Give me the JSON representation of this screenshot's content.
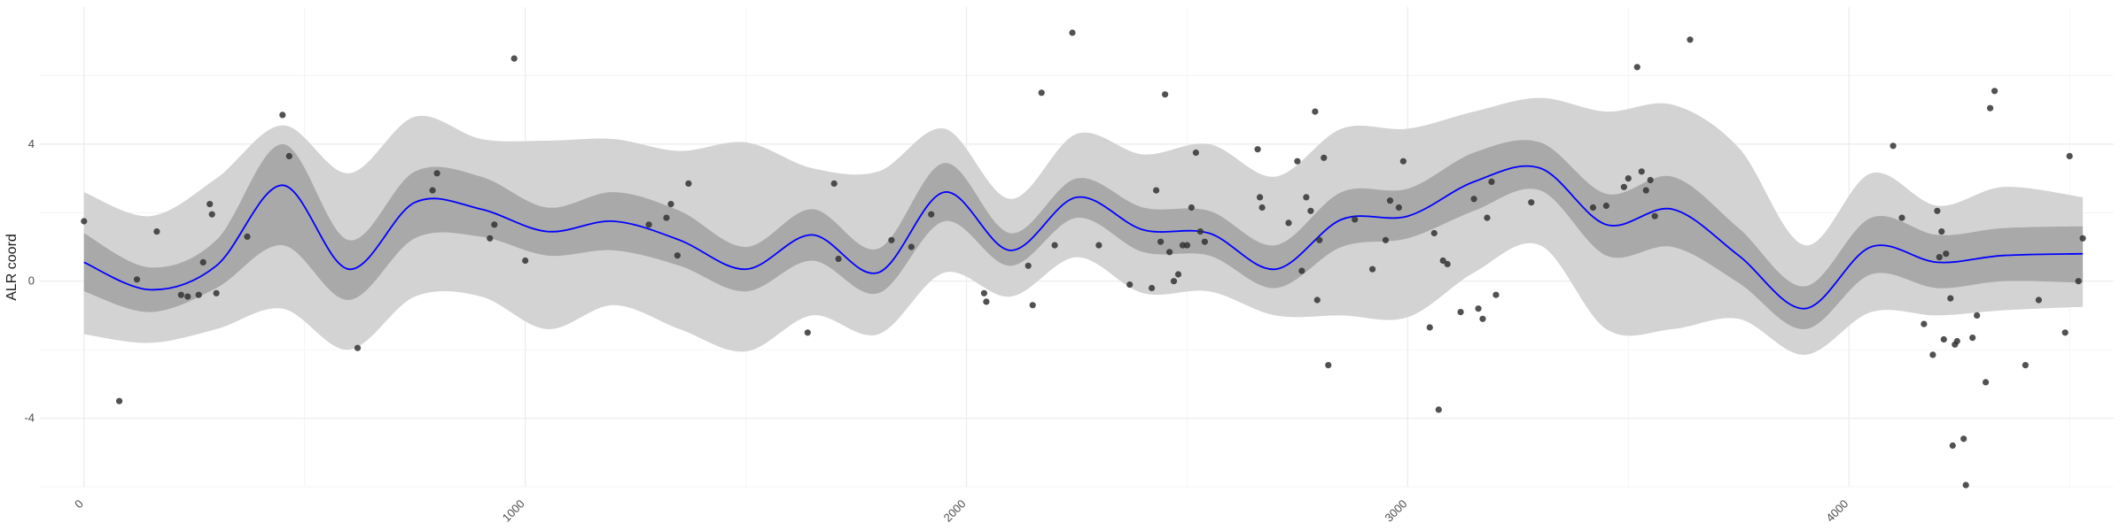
{
  "chart_data": {
    "type": "line",
    "title": "",
    "xlabel": "",
    "ylabel": "ALR coord",
    "xlim": [
      -100,
      4600
    ],
    "ylim": [
      -6,
      8
    ],
    "x_ticks": [
      0,
      1000,
      2000,
      3000,
      4000
    ],
    "x_tick_labels": [
      "0",
      "1000",
      "2000",
      "3000",
      "4000"
    ],
    "y_ticks": [
      -4,
      0,
      4
    ],
    "y_tick_labels": [
      "-4",
      "0",
      "4"
    ],
    "grid": true,
    "legend": "none",
    "colors": {
      "mean_line": "#0000ff",
      "inner_band": "#a9a9a9",
      "outer_band": "#d3d3d3",
      "points": "#333333",
      "grid_major": "#ebebeb",
      "grid_minor": "#f4f4f4"
    },
    "x_grid": [
      0,
      150,
      300,
      450,
      600,
      750,
      900,
      1050,
      1200,
      1350,
      1500,
      1650,
      1800,
      1950,
      2100,
      2250,
      2400,
      2550,
      2700,
      2850,
      3000,
      3150,
      3300,
      3450,
      3600,
      3750,
      3900,
      4050,
      4200,
      4350,
      4530
    ],
    "series": [
      {
        "role": "mean",
        "values": [
          0.55,
          -0.25,
          0.45,
          2.8,
          0.35,
          2.3,
          2.1,
          1.45,
          1.75,
          1.2,
          0.35,
          1.35,
          0.25,
          2.6,
          0.9,
          2.45,
          1.5,
          1.4,
          0.35,
          1.8,
          1.9,
          2.9,
          3.3,
          1.65,
          2.1,
          0.75,
          -0.8,
          1.0,
          0.55,
          0.75,
          0.8
        ]
      },
      {
        "role": "inner_band",
        "lower": [
          -0.3,
          -0.9,
          -0.2,
          1.05,
          -0.55,
          1.25,
          1.3,
          0.75,
          0.9,
          0.45,
          -0.3,
          0.6,
          -0.35,
          1.75,
          0.45,
          1.85,
          0.85,
          0.75,
          -0.2,
          1.0,
          1.25,
          2.05,
          2.65,
          0.75,
          1.0,
          -0.05,
          -1.4,
          0.2,
          -0.2,
          0.0,
          -0.05
        ],
        "upper": [
          1.4,
          0.4,
          1.2,
          4.0,
          1.2,
          3.2,
          3.05,
          2.15,
          2.6,
          2.05,
          1.0,
          2.1,
          0.95,
          3.45,
          1.4,
          3.0,
          2.15,
          2.05,
          1.05,
          2.6,
          2.7,
          3.75,
          4.05,
          2.55,
          3.05,
          1.55,
          -0.15,
          1.85,
          1.35,
          1.55,
          1.6
        ]
      },
      {
        "role": "outer_band",
        "lower": [
          -1.55,
          -1.8,
          -1.4,
          -0.8,
          -2.0,
          -0.45,
          -0.45,
          -1.4,
          -0.7,
          -1.4,
          -2.05,
          -1.0,
          -1.55,
          0.25,
          -0.45,
          0.7,
          -0.35,
          -0.3,
          -1.0,
          -1.0,
          -1.05,
          0.25,
          1.05,
          -1.4,
          -1.4,
          -1.1,
          -2.15,
          -0.9,
          -1.0,
          -0.85,
          -0.75
        ]
      },
      {
        "role": "outer_band",
        "upper": [
          2.6,
          1.9,
          3.0,
          4.55,
          3.15,
          4.8,
          4.15,
          4.1,
          4.15,
          3.8,
          4.05,
          3.3,
          3.2,
          4.45,
          2.4,
          4.3,
          3.7,
          4.0,
          3.05,
          4.45,
          4.45,
          4.95,
          5.35,
          4.95,
          5.15,
          3.9,
          1.05,
          3.15,
          2.2,
          2.75,
          2.45
        ]
      }
    ],
    "points": [
      {
        "x": 0,
        "y": 1.75
      },
      {
        "x": 80,
        "y": -3.5
      },
      {
        "x": 120,
        "y": 0.05
      },
      {
        "x": 165,
        "y": 1.45
      },
      {
        "x": 220,
        "y": -0.4
      },
      {
        "x": 235,
        "y": -0.45
      },
      {
        "x": 260,
        "y": -0.4
      },
      {
        "x": 270,
        "y": 0.55
      },
      {
        "x": 285,
        "y": 2.25
      },
      {
        "x": 290,
        "y": 1.95
      },
      {
        "x": 300,
        "y": -0.35
      },
      {
        "x": 370,
        "y": 1.3
      },
      {
        "x": 450,
        "y": 4.85
      },
      {
        "x": 465,
        "y": 3.65
      },
      {
        "x": 620,
        "y": -1.95
      },
      {
        "x": 790,
        "y": 2.65
      },
      {
        "x": 800,
        "y": 3.15
      },
      {
        "x": 920,
        "y": 1.25
      },
      {
        "x": 930,
        "y": 1.65
      },
      {
        "x": 975,
        "y": 6.5
      },
      {
        "x": 1000,
        "y": 0.6
      },
      {
        "x": 1280,
        "y": 1.65
      },
      {
        "x": 1320,
        "y": 1.85
      },
      {
        "x": 1330,
        "y": 2.25
      },
      {
        "x": 1345,
        "y": 0.75
      },
      {
        "x": 1370,
        "y": 2.85
      },
      {
        "x": 1640,
        "y": -1.5
      },
      {
        "x": 1700,
        "y": 2.85
      },
      {
        "x": 1710,
        "y": 0.65
      },
      {
        "x": 1830,
        "y": 1.2
      },
      {
        "x": 1875,
        "y": 1.0
      },
      {
        "x": 1920,
        "y": 1.95
      },
      {
        "x": 2040,
        "y": -0.35
      },
      {
        "x": 2045,
        "y": -0.6
      },
      {
        "x": 2140,
        "y": 0.45
      },
      {
        "x": 2150,
        "y": -0.7
      },
      {
        "x": 2170,
        "y": 5.5
      },
      {
        "x": 2200,
        "y": 1.05
      },
      {
        "x": 2240,
        "y": 7.25
      },
      {
        "x": 2300,
        "y": 1.05
      },
      {
        "x": 2370,
        "y": -0.1
      },
      {
        "x": 2420,
        "y": -0.2
      },
      {
        "x": 2430,
        "y": 2.65
      },
      {
        "x": 2440,
        "y": 1.15
      },
      {
        "x": 2450,
        "y": 5.45
      },
      {
        "x": 2460,
        "y": 0.85
      },
      {
        "x": 2470,
        "y": 0.0
      },
      {
        "x": 2480,
        "y": 0.2
      },
      {
        "x": 2490,
        "y": 1.05
      },
      {
        "x": 2500,
        "y": 1.05
      },
      {
        "x": 2510,
        "y": 2.15
      },
      {
        "x": 2520,
        "y": 3.75
      },
      {
        "x": 2530,
        "y": 1.45
      },
      {
        "x": 2540,
        "y": 1.15
      },
      {
        "x": 2660,
        "y": 3.85
      },
      {
        "x": 2665,
        "y": 2.45
      },
      {
        "x": 2670,
        "y": 2.15
      },
      {
        "x": 2730,
        "y": 1.7
      },
      {
        "x": 2750,
        "y": 3.5
      },
      {
        "x": 2760,
        "y": 0.3
      },
      {
        "x": 2770,
        "y": 2.45
      },
      {
        "x": 2780,
        "y": 2.05
      },
      {
        "x": 2790,
        "y": 4.95
      },
      {
        "x": 2795,
        "y": -0.55
      },
      {
        "x": 2800,
        "y": 1.2
      },
      {
        "x": 2810,
        "y": 3.6
      },
      {
        "x": 2820,
        "y": -2.45
      },
      {
        "x": 2880,
        "y": 1.8
      },
      {
        "x": 2920,
        "y": 0.35
      },
      {
        "x": 2950,
        "y": 1.2
      },
      {
        "x": 2960,
        "y": 2.35
      },
      {
        "x": 2980,
        "y": 2.15
      },
      {
        "x": 2990,
        "y": 3.5
      },
      {
        "x": 3050,
        "y": -1.35
      },
      {
        "x": 3060,
        "y": 1.4
      },
      {
        "x": 3070,
        "y": -3.75
      },
      {
        "x": 3080,
        "y": 0.6
      },
      {
        "x": 3090,
        "y": 0.5
      },
      {
        "x": 3120,
        "y": -0.9
      },
      {
        "x": 3150,
        "y": 2.4
      },
      {
        "x": 3160,
        "y": -0.8
      },
      {
        "x": 3170,
        "y": -1.1
      },
      {
        "x": 3180,
        "y": 1.85
      },
      {
        "x": 3190,
        "y": 2.9
      },
      {
        "x": 3200,
        "y": -0.4
      },
      {
        "x": 3280,
        "y": 2.3
      },
      {
        "x": 3420,
        "y": 2.15
      },
      {
        "x": 3450,
        "y": 2.2
      },
      {
        "x": 3490,
        "y": 2.75
      },
      {
        "x": 3500,
        "y": 3.0
      },
      {
        "x": 3520,
        "y": 6.25
      },
      {
        "x": 3530,
        "y": 3.2
      },
      {
        "x": 3540,
        "y": 2.65
      },
      {
        "x": 3550,
        "y": 2.95
      },
      {
        "x": 3560,
        "y": 1.9
      },
      {
        "x": 3640,
        "y": 7.05
      },
      {
        "x": 4100,
        "y": 3.95
      },
      {
        "x": 4120,
        "y": 1.85
      },
      {
        "x": 4170,
        "y": -1.25
      },
      {
        "x": 4190,
        "y": -2.15
      },
      {
        "x": 4200,
        "y": 2.05
      },
      {
        "x": 4205,
        "y": 0.7
      },
      {
        "x": 4210,
        "y": 1.45
      },
      {
        "x": 4215,
        "y": -1.7
      },
      {
        "x": 4220,
        "y": 0.8
      },
      {
        "x": 4230,
        "y": -0.5
      },
      {
        "x": 4235,
        "y": -4.8
      },
      {
        "x": 4240,
        "y": -1.85
      },
      {
        "x": 4245,
        "y": -1.75
      },
      {
        "x": 4260,
        "y": -4.6
      },
      {
        "x": 4265,
        "y": -5.95
      },
      {
        "x": 4280,
        "y": -1.65
      },
      {
        "x": 4290,
        "y": -1.0
      },
      {
        "x": 4310,
        "y": -2.95
      },
      {
        "x": 4320,
        "y": 5.05
      },
      {
        "x": 4330,
        "y": 5.55
      },
      {
        "x": 4400,
        "y": -2.45
      },
      {
        "x": 4430,
        "y": -0.55
      },
      {
        "x": 4490,
        "y": -1.5
      },
      {
        "x": 4500,
        "y": 3.65
      },
      {
        "x": 4520,
        "y": 0.0
      },
      {
        "x": 4530,
        "y": 1.25
      }
    ]
  }
}
